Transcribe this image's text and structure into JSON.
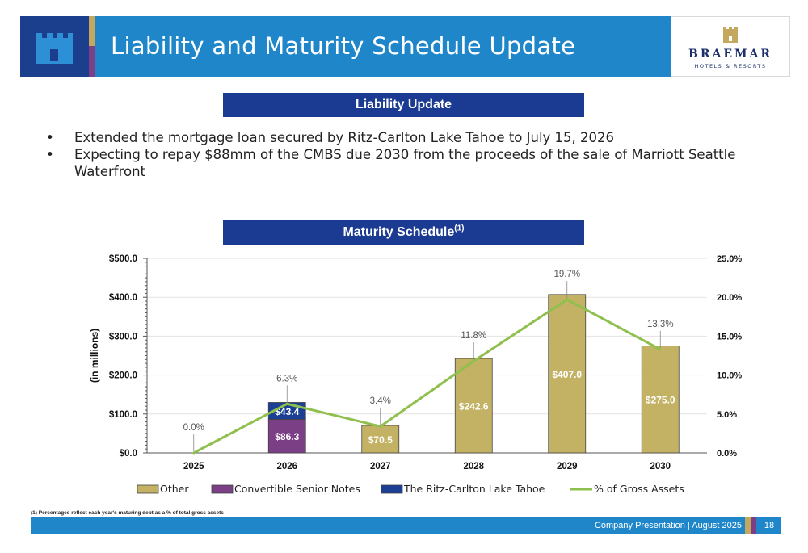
{
  "header": {
    "title": "Liability and Maturity Schedule Update",
    "logo": {
      "brand": "BRAEMAR",
      "sub": "HOTELS & RESORTS"
    }
  },
  "sections": {
    "liability": "Liability Update",
    "maturity": "Maturity Schedule",
    "maturity_sup": "(1)"
  },
  "bullets": [
    "Extended the mortgage loan secured by Ritz-Carlton Lake Tahoe to July 15, 2026",
    "Expecting to repay $88mm of the CMBS due 2030 from the proceeds of the sale of Marriott Seattle Waterfront"
  ],
  "bullet_glyph": "•",
  "colors": {
    "other": "#c3b264",
    "convertible": "#7b3f86",
    "ritz": "#1a3f94",
    "line": "#8fbf4d",
    "header_blue": "#1f87c9",
    "dark_blue": "#1b3a92"
  },
  "chart_data": {
    "type": "bar",
    "categories": [
      "2025",
      "2026",
      "2027",
      "2028",
      "2029",
      "2030"
    ],
    "series": [
      {
        "name": "Other",
        "values": [
          0,
          0,
          70.5,
          242.6,
          407.0,
          275.0
        ],
        "labels": [
          "",
          "",
          "$70.5",
          "$242.6",
          "$407.0",
          "$275.0"
        ]
      },
      {
        "name": "Convertible Senior Notes",
        "values": [
          0,
          86.3,
          0,
          0,
          0,
          0
        ],
        "labels": [
          "",
          "$86.3",
          "",
          "",
          "",
          ""
        ]
      },
      {
        "name": "The Ritz-Carlton Lake Tahoe",
        "values": [
          0,
          43.4,
          0,
          0,
          0,
          0
        ],
        "labels": [
          "",
          "$43.4",
          "",
          "",
          "",
          ""
        ]
      }
    ],
    "line_series": {
      "name": "% of Gross Assets",
      "values": [
        0.0,
        6.3,
        3.4,
        11.8,
        19.7,
        13.3
      ],
      "labels": [
        "0.0%",
        "6.3%",
        "3.4%",
        "11.8%",
        "19.7%",
        "13.3%"
      ]
    },
    "ylabel": "(in millions)",
    "ylim": [
      0,
      500
    ],
    "yticks": [
      "$0.0",
      "$100.0",
      "$200.0",
      "$300.0",
      "$400.0",
      "$500.0"
    ],
    "y2lim": [
      0,
      25
    ],
    "y2ticks": [
      "0.0%",
      "5.0%",
      "10.0%",
      "15.0%",
      "20.0%",
      "25.0%"
    ],
    "grid": true,
    "legend": "bottom"
  },
  "footnote": "(1) Percentages reflect each year's maturing debt as a % of total gross assets",
  "footer": {
    "text": "Company Presentation | August 2025",
    "page": "18"
  }
}
